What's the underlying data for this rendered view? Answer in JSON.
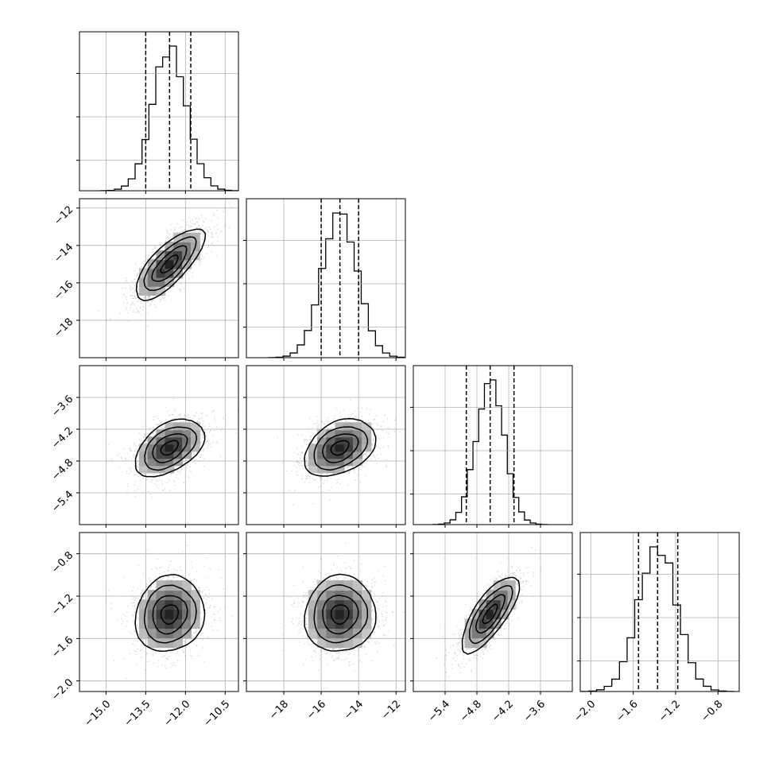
{
  "chart_data": {
    "type": "corner",
    "grid": true,
    "n_params": 4,
    "param_centers": [
      -12.6,
      -15.0,
      -4.55,
      -1.37
    ],
    "param_sigmas": [
      0.65,
      0.95,
      0.27,
      0.18
    ],
    "quantiles": [
      [
        -13.5,
        -12.6,
        -11.8
      ],
      [
        -16.0,
        -15.0,
        -14.0
      ],
      [
        -5.0,
        -4.55,
        -4.1
      ],
      [
        -1.55,
        -1.37,
        -1.18
      ]
    ],
    "axis_ranges": [
      [
        -16.0,
        -10.0
      ],
      [
        -20.0,
        -11.5
      ],
      [
        -6.0,
        -3.0
      ],
      [
        -2.1,
        -0.6
      ]
    ],
    "correlations": [
      [
        1.0,
        0.75,
        0.45,
        0.1
      ],
      [
        0.75,
        1.0,
        0.35,
        0.05
      ],
      [
        0.45,
        0.35,
        1.0,
        0.75
      ],
      [
        0.1,
        0.05,
        0.75,
        1.0
      ]
    ],
    "tick_labels": {
      "x": [
        [
          "−15.0",
          "−13.5",
          "−12.0",
          "−10.5"
        ],
        [
          "−18",
          "−16",
          "−14",
          "−12"
        ],
        [
          "−5.4",
          "−4.8",
          "−4.2",
          "−3.6"
        ],
        [
          "−2.0",
          "−1.6",
          "−1.2",
          "−0.8"
        ]
      ],
      "y": [
        [],
        [
          "−12",
          "−14",
          "−16",
          "−18"
        ],
        [
          "−3.6",
          "−4.2",
          "−4.8",
          "−5.4"
        ],
        [
          "−0.8",
          "−1.2",
          "−1.6",
          "−2.0"
        ]
      ]
    },
    "tick_values": {
      "x": [
        [
          -15.0,
          -13.5,
          -12.0,
          -10.5
        ],
        [
          -18,
          -16,
          -14,
          -12
        ],
        [
          -5.4,
          -4.8,
          -4.2,
          -3.6
        ],
        [
          -2.0,
          -1.6,
          -1.2,
          -0.8
        ]
      ],
      "y": [
        [],
        [
          -12,
          -14,
          -16,
          -18
        ],
        [
          -3.6,
          -4.2,
          -4.8,
          -5.4
        ],
        [
          -0.8,
          -1.2,
          -1.6,
          -2.0
        ]
      ]
    },
    "histogram_bins": 20,
    "contour_levels_sigma": [
      0.5,
      1.0,
      1.5,
      2.0
    ],
    "scatter_color": "#999999",
    "line_color": "#000000",
    "grid_color": "#b0b0b0"
  }
}
